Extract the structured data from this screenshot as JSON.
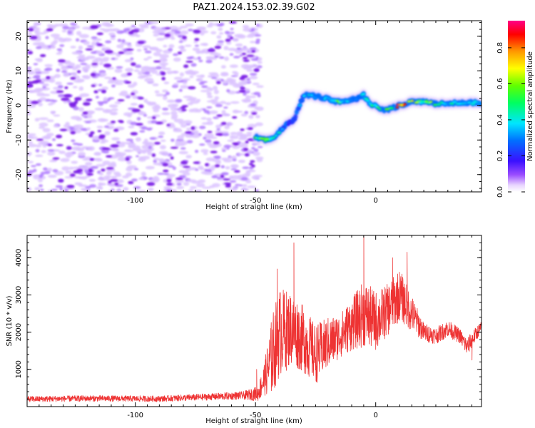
{
  "title": "PAZ1.2024.153.02.39.G02",
  "chart_data": [
    {
      "type": "heatmap",
      "xlabel": "Height of straight line (km)",
      "ylabel": "Frequency (Hz)",
      "xlim": [
        -145,
        44
      ],
      "ylim": [
        -25,
        24.5
      ],
      "xticks": [
        -100,
        -50,
        0
      ],
      "yticks": [
        -20,
        -10,
        0,
        10,
        20
      ],
      "colorbar": {
        "label": "Normalized spectral amplitude",
        "range": [
          0.0,
          0.95
        ],
        "ticks": [
          "0.0",
          "0.2",
          "0.4",
          "0.6",
          "0.8"
        ]
      },
      "noise_region": {
        "x_range": [
          -145,
          -48
        ],
        "y_range": [
          -25,
          24
        ],
        "level": 0.08
      },
      "ridge": {
        "x": [
          -50,
          -46,
          -42,
          -38,
          -34,
          -30,
          -28,
          -24,
          -20,
          -16,
          -12,
          -8,
          -5,
          -2,
          0,
          3,
          6,
          10,
          15,
          20,
          25,
          30,
          35,
          40,
          44
        ],
        "frequency": [
          -9,
          -10,
          -9,
          -6,
          -4,
          3,
          3,
          2.5,
          2,
          1,
          1.5,
          2,
          3,
          0,
          0,
          -1.5,
          -1,
          0,
          1,
          1,
          0.5,
          0.5,
          0.8,
          0.8,
          0.8
        ],
        "amplitude": [
          0.5,
          0.65,
          0.5,
          0.3,
          0.25,
          0.35,
          0.4,
          0.45,
          0.4,
          0.55,
          0.4,
          0.35,
          0.45,
          0.5,
          0.45,
          0.6,
          0.5,
          0.9,
          0.75,
          0.5,
          0.7,
          0.4,
          0.45,
          0.4,
          0.35
        ]
      }
    },
    {
      "type": "line",
      "xlabel": "Height of straight line (km)",
      "ylabel": "SNR (10 * v/v)",
      "xlim": [
        -145,
        44
      ],
      "ylim": [
        0,
        4600
      ],
      "xticks": [
        -100,
        -50,
        0
      ],
      "yticks": [
        1000,
        2000,
        3000,
        4000
      ],
      "series": [
        {
          "color": "#ee3333",
          "x": [
            -145,
            -120,
            -90,
            -70,
            -55,
            -49,
            -46,
            -43,
            -40,
            -35,
            -30,
            -25,
            -20,
            -15,
            -10,
            -5,
            0,
            5,
            10,
            15,
            20,
            25,
            30,
            35,
            38,
            40,
            44
          ],
          "mean": [
            200,
            220,
            210,
            260,
            300,
            350,
            800,
            1400,
            2000,
            2100,
            1800,
            1400,
            1700,
            1900,
            2200,
            2500,
            2300,
            2600,
            3000,
            2500,
            2000,
            1900,
            2100,
            1900,
            1600,
            1800,
            2150
          ],
          "spread": [
            80,
            80,
            80,
            90,
            110,
            200,
            500,
            1100,
            1200,
            1000,
            900,
            800,
            700,
            600,
            700,
            900,
            800,
            700,
            700,
            500,
            250,
            220,
            230,
            200,
            250,
            220,
            150
          ],
          "peaks": [
            {
              "x": -49.5,
              "y": 1000
            },
            {
              "x": -41,
              "y": 3700
            },
            {
              "x": -34,
              "y": 4400
            },
            {
              "x": -5,
              "y": 4600
            },
            {
              "x": 7,
              "y": 4000
            },
            {
              "x": 13,
              "y": 4150
            },
            {
              "x": 40,
              "y": 1250
            }
          ]
        }
      ]
    }
  ]
}
